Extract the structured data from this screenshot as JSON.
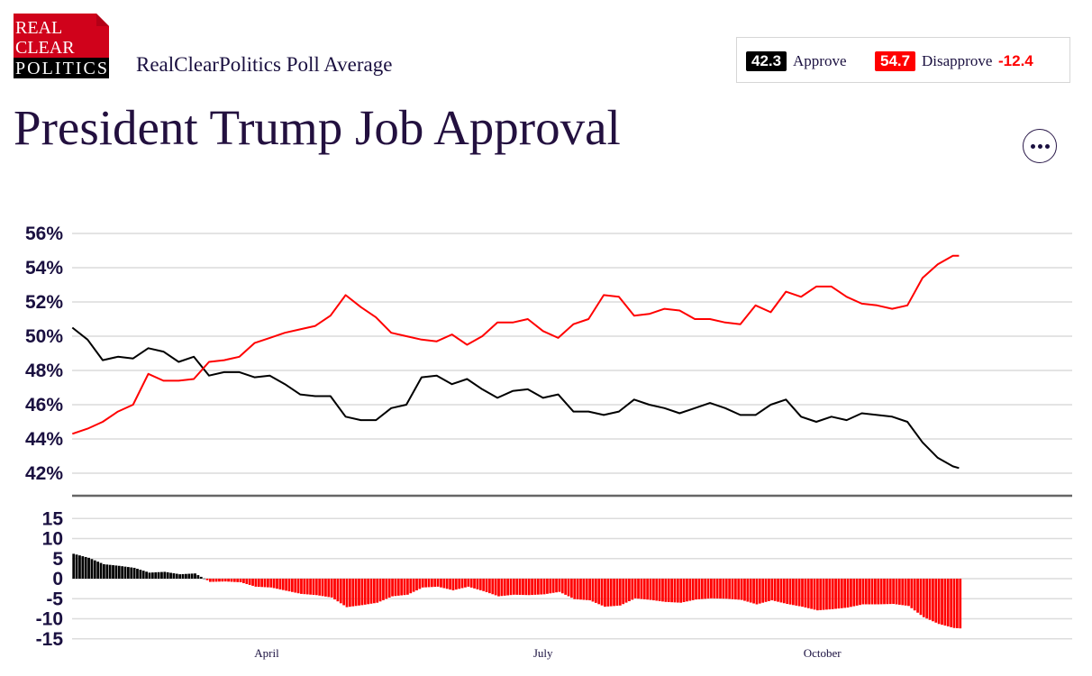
{
  "logo": {
    "line1": "REAL",
    "line2": "CLEAR",
    "line3": "POLITICS"
  },
  "header": {
    "subtitle": "RealClearPolitics Poll Average",
    "title": "President Trump Job Approval"
  },
  "legend": {
    "approve_value": "42.3",
    "approve_label": "Approve",
    "disapprove_value": "54.7",
    "disapprove_label": "Disapprove",
    "spread": "-12.4",
    "approve_color": "#000000",
    "disapprove_color": "#ff0000"
  },
  "more_button": {
    "icon": "ellipsis-icon"
  },
  "chart_data": [
    {
      "type": "line",
      "ylim": [
        42,
        56
      ],
      "y_ticks": [
        "56%",
        "54%",
        "52%",
        "50%",
        "48%",
        "46%",
        "44%",
        "42%"
      ],
      "grid": true,
      "x": [
        "2025-01-27",
        "2025-02-01",
        "2025-02-06",
        "2025-02-11",
        "2025-02-16",
        "2025-02-21",
        "2025-02-26",
        "2025-03-03",
        "2025-03-08",
        "2025-03-13",
        "2025-03-18",
        "2025-03-23",
        "2025-03-28",
        "2025-04-02",
        "2025-04-07",
        "2025-04-12",
        "2025-04-17",
        "2025-04-22",
        "2025-04-27",
        "2025-05-02",
        "2025-05-07",
        "2025-05-12",
        "2025-05-17",
        "2025-05-22",
        "2025-05-27",
        "2025-06-01",
        "2025-06-06",
        "2025-06-11",
        "2025-06-16",
        "2025-06-21",
        "2025-06-26",
        "2025-07-01",
        "2025-07-06",
        "2025-07-11",
        "2025-07-16",
        "2025-07-21",
        "2025-07-26",
        "2025-07-31",
        "2025-08-05",
        "2025-08-10",
        "2025-08-15",
        "2025-08-20",
        "2025-08-25",
        "2025-08-30",
        "2025-09-04",
        "2025-09-09",
        "2025-09-14",
        "2025-09-19",
        "2025-09-24",
        "2025-09-29",
        "2025-10-04",
        "2025-10-09",
        "2025-10-14",
        "2025-10-19",
        "2025-10-24",
        "2025-10-29",
        "2025-11-03",
        "2025-11-08",
        "2025-11-13",
        "2025-11-15"
      ],
      "series": [
        {
          "name": "Approve",
          "color": "#000000",
          "values": [
            50.5,
            49.8,
            48.6,
            48.8,
            48.7,
            49.3,
            49.1,
            48.5,
            48.8,
            47.7,
            47.9,
            47.9,
            47.6,
            47.7,
            47.2,
            46.6,
            46.5,
            46.5,
            45.3,
            45.1,
            45.1,
            45.8,
            46.0,
            47.6,
            47.7,
            47.2,
            47.5,
            46.9,
            46.4,
            46.8,
            46.9,
            46.4,
            46.6,
            45.6,
            45.6,
            45.4,
            45.6,
            46.3,
            46.0,
            45.8,
            45.5,
            45.8,
            46.1,
            45.8,
            45.4,
            45.4,
            46.0,
            46.3,
            45.3,
            45.0,
            45.3,
            45.1,
            45.5,
            45.4,
            45.3,
            45.0,
            43.8,
            42.9,
            42.4,
            42.3
          ]
        },
        {
          "name": "Disapprove",
          "color": "#ff0000",
          "values": [
            44.3,
            44.6,
            45.0,
            45.6,
            46.0,
            47.8,
            47.4,
            47.4,
            47.5,
            48.5,
            48.6,
            48.8,
            49.6,
            49.9,
            50.2,
            50.4,
            50.6,
            51.2,
            52.4,
            51.7,
            51.1,
            50.2,
            50.0,
            49.8,
            49.7,
            50.1,
            49.5,
            50.0,
            50.8,
            50.8,
            51.0,
            50.3,
            49.9,
            50.7,
            51.0,
            52.4,
            52.3,
            51.2,
            51.3,
            51.6,
            51.5,
            51.0,
            51.0,
            50.8,
            50.7,
            51.8,
            51.4,
            52.6,
            52.3,
            52.9,
            52.9,
            52.3,
            51.9,
            51.8,
            51.6,
            51.8,
            53.4,
            54.2,
            54.7,
            54.7
          ]
        }
      ]
    },
    {
      "type": "bar",
      "ylim": [
        -15,
        15
      ],
      "y_ticks": [
        "15",
        "10",
        "5",
        "0",
        "-5",
        "-10",
        "-15"
      ],
      "values_source": "Approve minus Disapprove",
      "positive_color": "#000000",
      "negative_color": "#ff0000",
      "x_ticks": [
        "April",
        "July",
        "October"
      ]
    }
  ]
}
